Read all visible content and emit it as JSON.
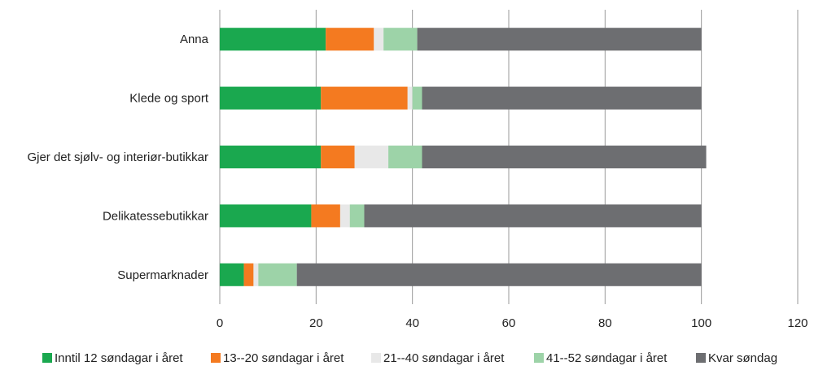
{
  "chart_data": {
    "type": "bar",
    "orientation": "horizontal",
    "stacked": true,
    "categories": [
      "Anna",
      "Klede og sport",
      "Gjer det sjølv- og interiør-butikkar",
      "Delikatessebutikkar",
      "Supermarknader"
    ],
    "series": [
      {
        "name": "Inntil 12 søndagar i året",
        "color": "#1aa84f",
        "values": [
          22,
          21,
          21,
          19,
          5
        ]
      },
      {
        "name": "13--20 søndagar i året",
        "color": "#f47a20",
        "values": [
          10,
          18,
          7,
          6,
          2
        ]
      },
      {
        "name": "21--40 søndagar i året",
        "color": "#e8e8e8",
        "values": [
          2,
          1,
          7,
          2,
          1
        ]
      },
      {
        "name": "41--52 søndagar i året",
        "color": "#9dd3a8",
        "values": [
          7,
          2,
          7,
          3,
          8
        ]
      },
      {
        "name": "Kvar søndag",
        "color": "#6d6e71",
        "values": [
          59,
          58,
          59,
          70,
          84
        ]
      }
    ],
    "xlim": [
      0,
      120
    ],
    "xticks": [
      "0",
      "20",
      "40",
      "60",
      "80",
      "100",
      "120"
    ],
    "grid": true,
    "legend_position": "bottom",
    "title": "",
    "xlabel": "",
    "ylabel": ""
  }
}
